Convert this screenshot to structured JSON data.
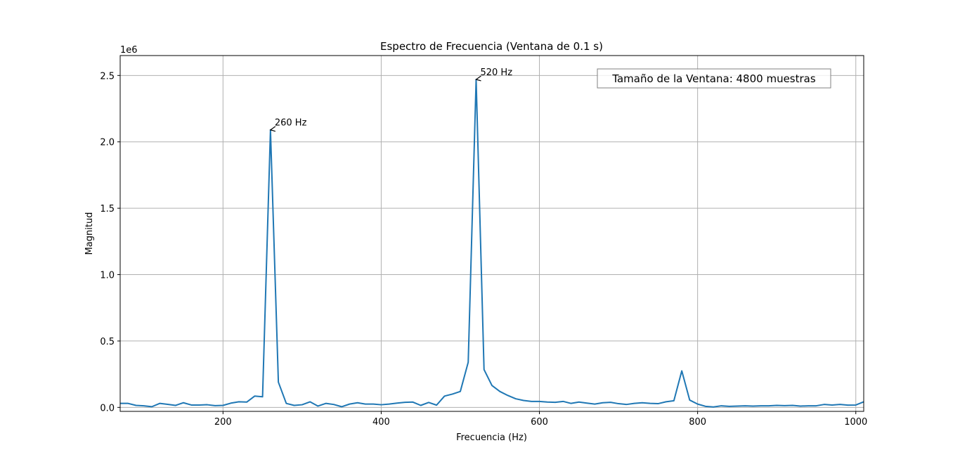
{
  "chart_data": {
    "type": "line",
    "title": "Espectro de Frecuencia (Ventana de 0.1 s)",
    "xlabel": "Frecuencia (Hz)",
    "ylabel": "Magnitud",
    "y_offset_label": "1e6",
    "xlim": [
      70,
      1010
    ],
    "ylim": [
      -30000,
      2650000
    ],
    "grid": true,
    "x_ticks": [
      200,
      400,
      600,
      800,
      1000
    ],
    "x_tick_labels": [
      "200",
      "400",
      "600",
      "800",
      "1000"
    ],
    "y_ticks": [
      0,
      500000,
      1000000,
      1500000,
      2000000,
      2500000
    ],
    "y_tick_labels": [
      "0.0",
      "0.5",
      "1.0",
      "1.5",
      "2.0",
      "2.5"
    ],
    "series": [
      {
        "color": "#1f77b4",
        "x": [
          70,
          80,
          90,
          100,
          110,
          120,
          130,
          140,
          150,
          160,
          170,
          180,
          190,
          200,
          210,
          220,
          230,
          240,
          250,
          260,
          270,
          280,
          290,
          300,
          310,
          320,
          330,
          340,
          350,
          360,
          370,
          380,
          390,
          400,
          410,
          420,
          430,
          440,
          450,
          460,
          470,
          480,
          490,
          500,
          510,
          520,
          530,
          540,
          550,
          560,
          570,
          580,
          590,
          600,
          610,
          620,
          630,
          640,
          650,
          660,
          670,
          680,
          690,
          700,
          710,
          720,
          730,
          740,
          750,
          760,
          770,
          780,
          790,
          800,
          810,
          820,
          830,
          840,
          850,
          860,
          870,
          880,
          890,
          900,
          910,
          920,
          930,
          940,
          950,
          960,
          970,
          980,
          990,
          1000,
          1010
        ],
        "y": [
          30000,
          30000,
          15000,
          12000,
          5000,
          30000,
          23000,
          15000,
          35000,
          18000,
          18000,
          20000,
          13000,
          15000,
          32000,
          42000,
          40000,
          85000,
          80000,
          2090000,
          190000,
          30000,
          15000,
          20000,
          42000,
          10000,
          30000,
          22000,
          5000,
          25000,
          35000,
          25000,
          25000,
          20000,
          25000,
          32000,
          38000,
          40000,
          15000,
          37000,
          17000,
          85000,
          100000,
          120000,
          340000,
          2470000,
          285000,
          165000,
          120000,
          90000,
          65000,
          52000,
          45000,
          45000,
          40000,
          38000,
          45000,
          30000,
          40000,
          32000,
          25000,
          35000,
          38000,
          28000,
          22000,
          30000,
          35000,
          30000,
          28000,
          42000,
          50000,
          275000,
          55000,
          25000,
          8000,
          3000,
          12000,
          8000,
          10000,
          12000,
          10000,
          12000,
          12000,
          15000,
          13000,
          15000,
          10000,
          12000,
          12000,
          22000,
          18000,
          22000,
          17000,
          18000,
          42000
        ]
      }
    ],
    "annotations": [
      {
        "text": "260 Hz",
        "x": 260,
        "y": 2090000
      },
      {
        "text": "520 Hz",
        "x": 520,
        "y": 2470000
      }
    ],
    "info_box": "Tamaño de la Ventana: 4800 muestras"
  }
}
